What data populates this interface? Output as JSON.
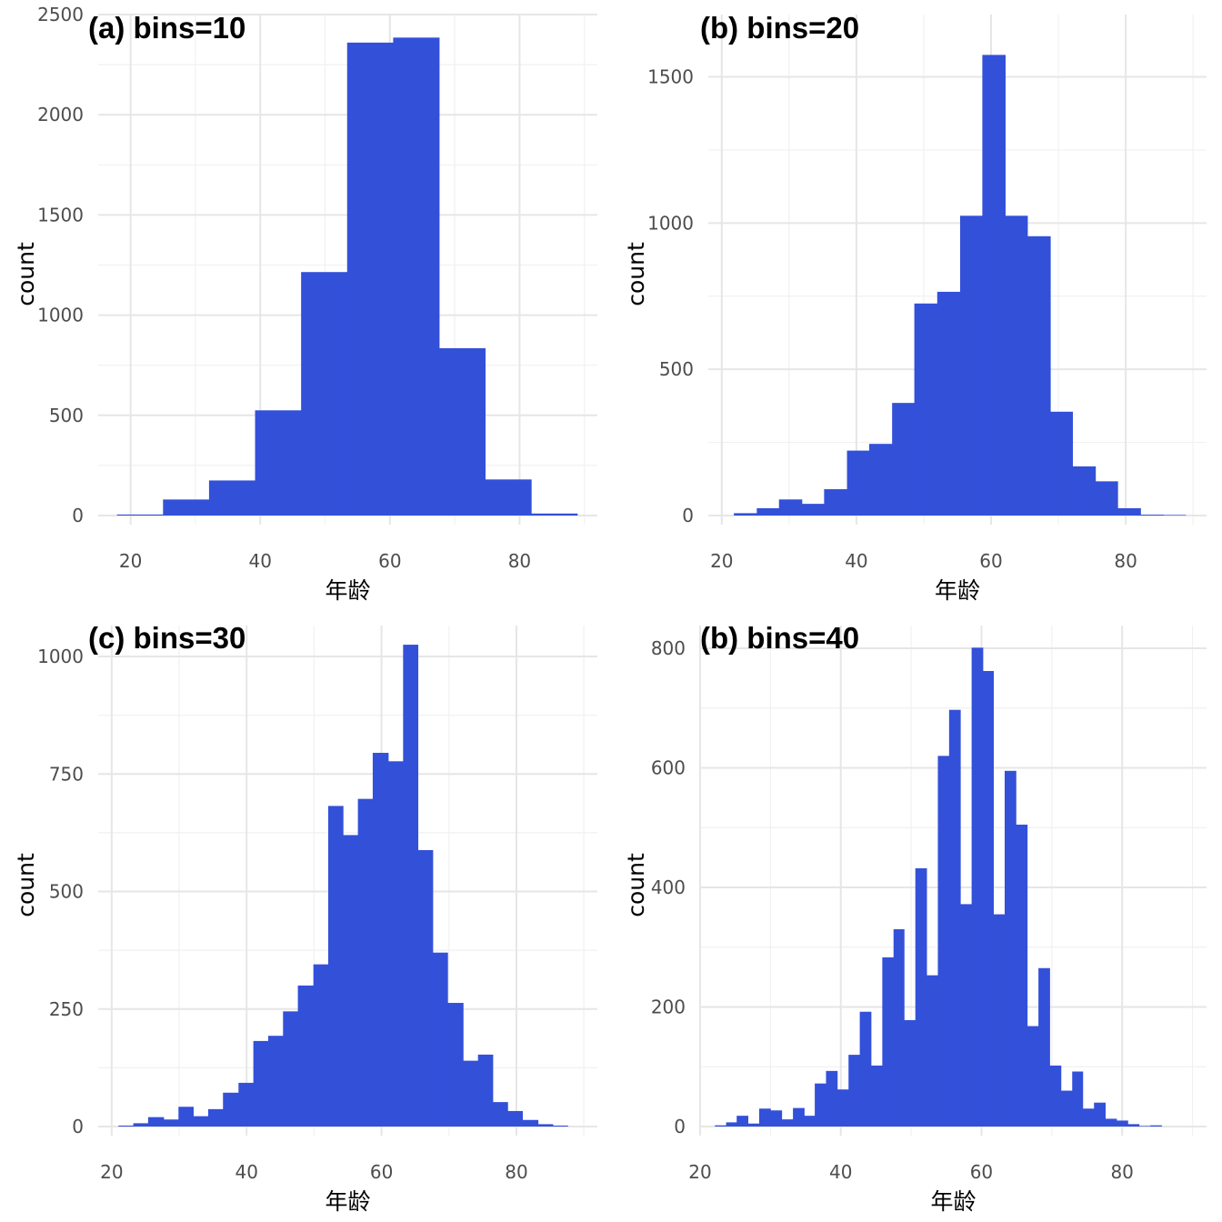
{
  "figure": {
    "colors": {
      "bar": "#3350D9",
      "grid_major": "#e6e6e6",
      "grid_minor": "#f1f1f1",
      "background": "#ffffff"
    }
  },
  "chart_data": [
    {
      "type": "bar",
      "title": "(a) bins=10",
      "xlabel": "年龄",
      "ylabel": "count",
      "xlim": [
        15,
        92
      ],
      "ylim": [
        0,
        2500
      ],
      "xticks": [
        20,
        40,
        60,
        80
      ],
      "yticks": [
        0,
        500,
        1000,
        1500,
        2000,
        2500
      ],
      "grid": true,
      "bins": [
        {
          "x0": 17.9,
          "x1": 25.0,
          "count": 5
        },
        {
          "x0": 25.0,
          "x1": 32.1,
          "count": 80
        },
        {
          "x0": 32.1,
          "x1": 39.2,
          "count": 175
        },
        {
          "x0": 39.2,
          "x1": 46.3,
          "count": 525
        },
        {
          "x0": 46.3,
          "x1": 53.4,
          "count": 1215
        },
        {
          "x0": 53.4,
          "x1": 60.5,
          "count": 2360
        },
        {
          "x0": 60.5,
          "x1": 67.6,
          "count": 2385
        },
        {
          "x0": 67.6,
          "x1": 74.7,
          "count": 835
        },
        {
          "x0": 74.7,
          "x1": 81.8,
          "count": 180
        },
        {
          "x0": 81.8,
          "x1": 88.9,
          "count": 10
        }
      ]
    },
    {
      "type": "bar",
      "title": "(b) bins=20",
      "xlabel": "年龄",
      "ylabel": "count",
      "xlim": [
        18,
        92
      ],
      "ylim": [
        0,
        1570
      ],
      "xticks": [
        20,
        40,
        60,
        80
      ],
      "yticks": [
        0,
        500,
        1000,
        1500
      ],
      "grid": true,
      "bins": [
        {
          "x0": 21.8,
          "x1": 25.2,
          "count": 8
        },
        {
          "x0": 25.2,
          "x1": 28.5,
          "count": 25
        },
        {
          "x0": 28.5,
          "x1": 31.9,
          "count": 55
        },
        {
          "x0": 31.9,
          "x1": 35.2,
          "count": 40
        },
        {
          "x0": 35.2,
          "x1": 38.6,
          "count": 90
        },
        {
          "x0": 38.6,
          "x1": 41.9,
          "count": 222
        },
        {
          "x0": 41.9,
          "x1": 45.3,
          "count": 245
        },
        {
          "x0": 45.3,
          "x1": 48.6,
          "count": 385
        },
        {
          "x0": 48.6,
          "x1": 52.0,
          "count": 725
        },
        {
          "x0": 52.0,
          "x1": 55.4,
          "count": 765
        },
        {
          "x0": 55.4,
          "x1": 58.7,
          "count": 1025
        },
        {
          "x0": 58.7,
          "x1": 62.1,
          "count": 1575
        },
        {
          "x0": 62.1,
          "x1": 65.4,
          "count": 1025
        },
        {
          "x0": 65.4,
          "x1": 68.8,
          "count": 955
        },
        {
          "x0": 68.8,
          "x1": 72.1,
          "count": 355
        },
        {
          "x0": 72.1,
          "x1": 75.5,
          "count": 168
        },
        {
          "x0": 75.5,
          "x1": 78.8,
          "count": 117
        },
        {
          "x0": 78.8,
          "x1": 82.2,
          "count": 25
        },
        {
          "x0": 82.2,
          "x1": 85.6,
          "count": 3
        },
        {
          "x0": 85.6,
          "x1": 88.9,
          "count": 2
        }
      ]
    },
    {
      "type": "bar",
      "title": "(c) bins=30",
      "xlabel": "年龄",
      "ylabel": "count",
      "xlim": [
        18,
        92
      ],
      "ylim": [
        0,
        1000
      ],
      "xticks": [
        20,
        40,
        60,
        80
      ],
      "yticks": [
        0,
        250,
        500,
        750,
        1000
      ],
      "grid": true,
      "bins": [
        {
          "x0": 21.0,
          "x1": 23.2,
          "count": 2
        },
        {
          "x0": 23.2,
          "x1": 25.4,
          "count": 7
        },
        {
          "x0": 25.4,
          "x1": 27.7,
          "count": 20
        },
        {
          "x0": 27.7,
          "x1": 29.9,
          "count": 15
        },
        {
          "x0": 29.9,
          "x1": 32.1,
          "count": 42
        },
        {
          "x0": 32.1,
          "x1": 34.3,
          "count": 22
        },
        {
          "x0": 34.3,
          "x1": 36.5,
          "count": 37
        },
        {
          "x0": 36.5,
          "x1": 38.8,
          "count": 72
        },
        {
          "x0": 38.8,
          "x1": 41.0,
          "count": 93
        },
        {
          "x0": 41.0,
          "x1": 43.2,
          "count": 182
        },
        {
          "x0": 43.2,
          "x1": 45.4,
          "count": 193
        },
        {
          "x0": 45.4,
          "x1": 47.6,
          "count": 245
        },
        {
          "x0": 47.6,
          "x1": 49.9,
          "count": 300
        },
        {
          "x0": 49.9,
          "x1": 52.1,
          "count": 345
        },
        {
          "x0": 52.1,
          "x1": 54.3,
          "count": 682
        },
        {
          "x0": 54.3,
          "x1": 56.5,
          "count": 620
        },
        {
          "x0": 56.5,
          "x1": 58.7,
          "count": 697
        },
        {
          "x0": 58.7,
          "x1": 61.0,
          "count": 795
        },
        {
          "x0": 61.0,
          "x1": 63.2,
          "count": 777
        },
        {
          "x0": 63.2,
          "x1": 65.4,
          "count": 1025
        },
        {
          "x0": 65.4,
          "x1": 67.6,
          "count": 588
        },
        {
          "x0": 67.6,
          "x1": 69.8,
          "count": 370
        },
        {
          "x0": 69.8,
          "x1": 72.1,
          "count": 263
        },
        {
          "x0": 72.1,
          "x1": 74.3,
          "count": 140
        },
        {
          "x0": 74.3,
          "x1": 76.5,
          "count": 153
        },
        {
          "x0": 76.5,
          "x1": 78.7,
          "count": 52
        },
        {
          "x0": 78.7,
          "x1": 80.9,
          "count": 33
        },
        {
          "x0": 80.9,
          "x1": 83.2,
          "count": 14
        },
        {
          "x0": 83.2,
          "x1": 85.4,
          "count": 5
        },
        {
          "x0": 85.4,
          "x1": 87.6,
          "count": 2
        }
      ]
    },
    {
      "type": "bar",
      "title": "(b) bins=40",
      "xlabel": "年龄",
      "ylabel": "count",
      "xlim": [
        20,
        92
      ],
      "ylim": [
        0,
        800
      ],
      "xticks": [
        20,
        40,
        60,
        80
      ],
      "yticks": [
        0,
        200,
        400,
        600,
        800
      ],
      "grid": true,
      "bins": [
        {
          "x0": 22.1,
          "x1": 23.7,
          "count": 2
        },
        {
          "x0": 23.7,
          "x1": 25.2,
          "count": 7
        },
        {
          "x0": 25.2,
          "x1": 26.8,
          "count": 18
        },
        {
          "x0": 26.8,
          "x1": 28.4,
          "count": 5
        },
        {
          "x0": 28.4,
          "x1": 30.0,
          "count": 30
        },
        {
          "x0": 30.0,
          "x1": 31.6,
          "count": 27
        },
        {
          "x0": 31.6,
          "x1": 33.2,
          "count": 12
        },
        {
          "x0": 33.2,
          "x1": 34.8,
          "count": 31
        },
        {
          "x0": 34.8,
          "x1": 36.3,
          "count": 18
        },
        {
          "x0": 36.3,
          "x1": 37.9,
          "count": 72
        },
        {
          "x0": 37.9,
          "x1": 39.5,
          "count": 93
        },
        {
          "x0": 39.5,
          "x1": 41.1,
          "count": 62
        },
        {
          "x0": 41.1,
          "x1": 42.7,
          "count": 120
        },
        {
          "x0": 42.7,
          "x1": 44.3,
          "count": 192
        },
        {
          "x0": 44.3,
          "x1": 45.9,
          "count": 102
        },
        {
          "x0": 45.9,
          "x1": 47.5,
          "count": 283
        },
        {
          "x0": 47.5,
          "x1": 49.0,
          "count": 330
        },
        {
          "x0": 49.0,
          "x1": 50.6,
          "count": 178
        },
        {
          "x0": 50.6,
          "x1": 52.2,
          "count": 432
        },
        {
          "x0": 52.2,
          "x1": 53.8,
          "count": 253
        },
        {
          "x0": 53.8,
          "x1": 55.4,
          "count": 620
        },
        {
          "x0": 55.4,
          "x1": 57.0,
          "count": 697
        },
        {
          "x0": 57.0,
          "x1": 58.6,
          "count": 372
        },
        {
          "x0": 58.6,
          "x1": 60.2,
          "count": 801
        },
        {
          "x0": 60.2,
          "x1": 61.7,
          "count": 762
        },
        {
          "x0": 61.7,
          "x1": 63.3,
          "count": 355
        },
        {
          "x0": 63.3,
          "x1": 64.9,
          "count": 595
        },
        {
          "x0": 64.9,
          "x1": 66.5,
          "count": 505
        },
        {
          "x0": 66.5,
          "x1": 68.1,
          "count": 168
        },
        {
          "x0": 68.1,
          "x1": 69.7,
          "count": 265
        },
        {
          "x0": 69.7,
          "x1": 71.3,
          "count": 102
        },
        {
          "x0": 71.3,
          "x1": 72.9,
          "count": 60
        },
        {
          "x0": 72.9,
          "x1": 74.4,
          "count": 92
        },
        {
          "x0": 74.4,
          "x1": 76.0,
          "count": 30
        },
        {
          "x0": 76.0,
          "x1": 77.6,
          "count": 40
        },
        {
          "x0": 77.6,
          "x1": 79.2,
          "count": 13
        },
        {
          "x0": 79.2,
          "x1": 80.8,
          "count": 10
        },
        {
          "x0": 80.8,
          "x1": 82.4,
          "count": 4
        },
        {
          "x0": 82.4,
          "x1": 84.0,
          "count": 1
        },
        {
          "x0": 84.0,
          "x1": 85.6,
          "count": 2
        }
      ]
    }
  ]
}
